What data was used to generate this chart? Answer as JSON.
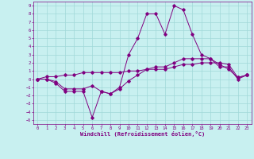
{
  "xlabel": "Windchill (Refroidissement éolien,°C)",
  "x": [
    0,
    1,
    2,
    3,
    4,
    5,
    6,
    7,
    8,
    9,
    10,
    11,
    12,
    13,
    14,
    15,
    16,
    17,
    18,
    19,
    20,
    21,
    22,
    23
  ],
  "line1": [
    0,
    0,
    -0.5,
    -1.5,
    -1.5,
    -1.5,
    -4.7,
    -1.5,
    -1.8,
    -1.0,
    3.0,
    5.0,
    8.0,
    8.0,
    5.5,
    9.0,
    8.5,
    5.5,
    3.0,
    2.5,
    1.5,
    1.5,
    0.0,
    0.5
  ],
  "line2": [
    0,
    0,
    -0.3,
    -1.2,
    -1.2,
    -1.2,
    -0.8,
    -1.5,
    -1.8,
    -1.2,
    -0.2,
    0.5,
    1.2,
    1.5,
    1.5,
    2.0,
    2.5,
    2.5,
    2.5,
    2.5,
    1.8,
    1.2,
    0.2,
    0.5
  ],
  "line3": [
    0,
    0.3,
    0.3,
    0.5,
    0.5,
    0.8,
    0.8,
    0.8,
    0.8,
    0.8,
    1.0,
    1.0,
    1.2,
    1.2,
    1.2,
    1.5,
    1.8,
    1.8,
    2.0,
    2.0,
    2.0,
    1.8,
    0.2,
    0.5
  ],
  "line_color": "#800080",
  "bg_color": "#c8f0f0",
  "grid_color": "#a0d8d8",
  "ylim": [
    -5.5,
    9.5
  ],
  "xlim": [
    -0.5,
    23.5
  ],
  "yticks": [
    -5,
    -4,
    -3,
    -2,
    -1,
    0,
    1,
    2,
    3,
    4,
    5,
    6,
    7,
    8,
    9
  ],
  "xticks": [
    0,
    1,
    2,
    3,
    4,
    5,
    6,
    7,
    8,
    9,
    10,
    11,
    12,
    13,
    14,
    15,
    16,
    17,
    18,
    19,
    20,
    21,
    22,
    23
  ],
  "tick_fontsize": 4.0,
  "xlabel_fontsize": 5.0
}
